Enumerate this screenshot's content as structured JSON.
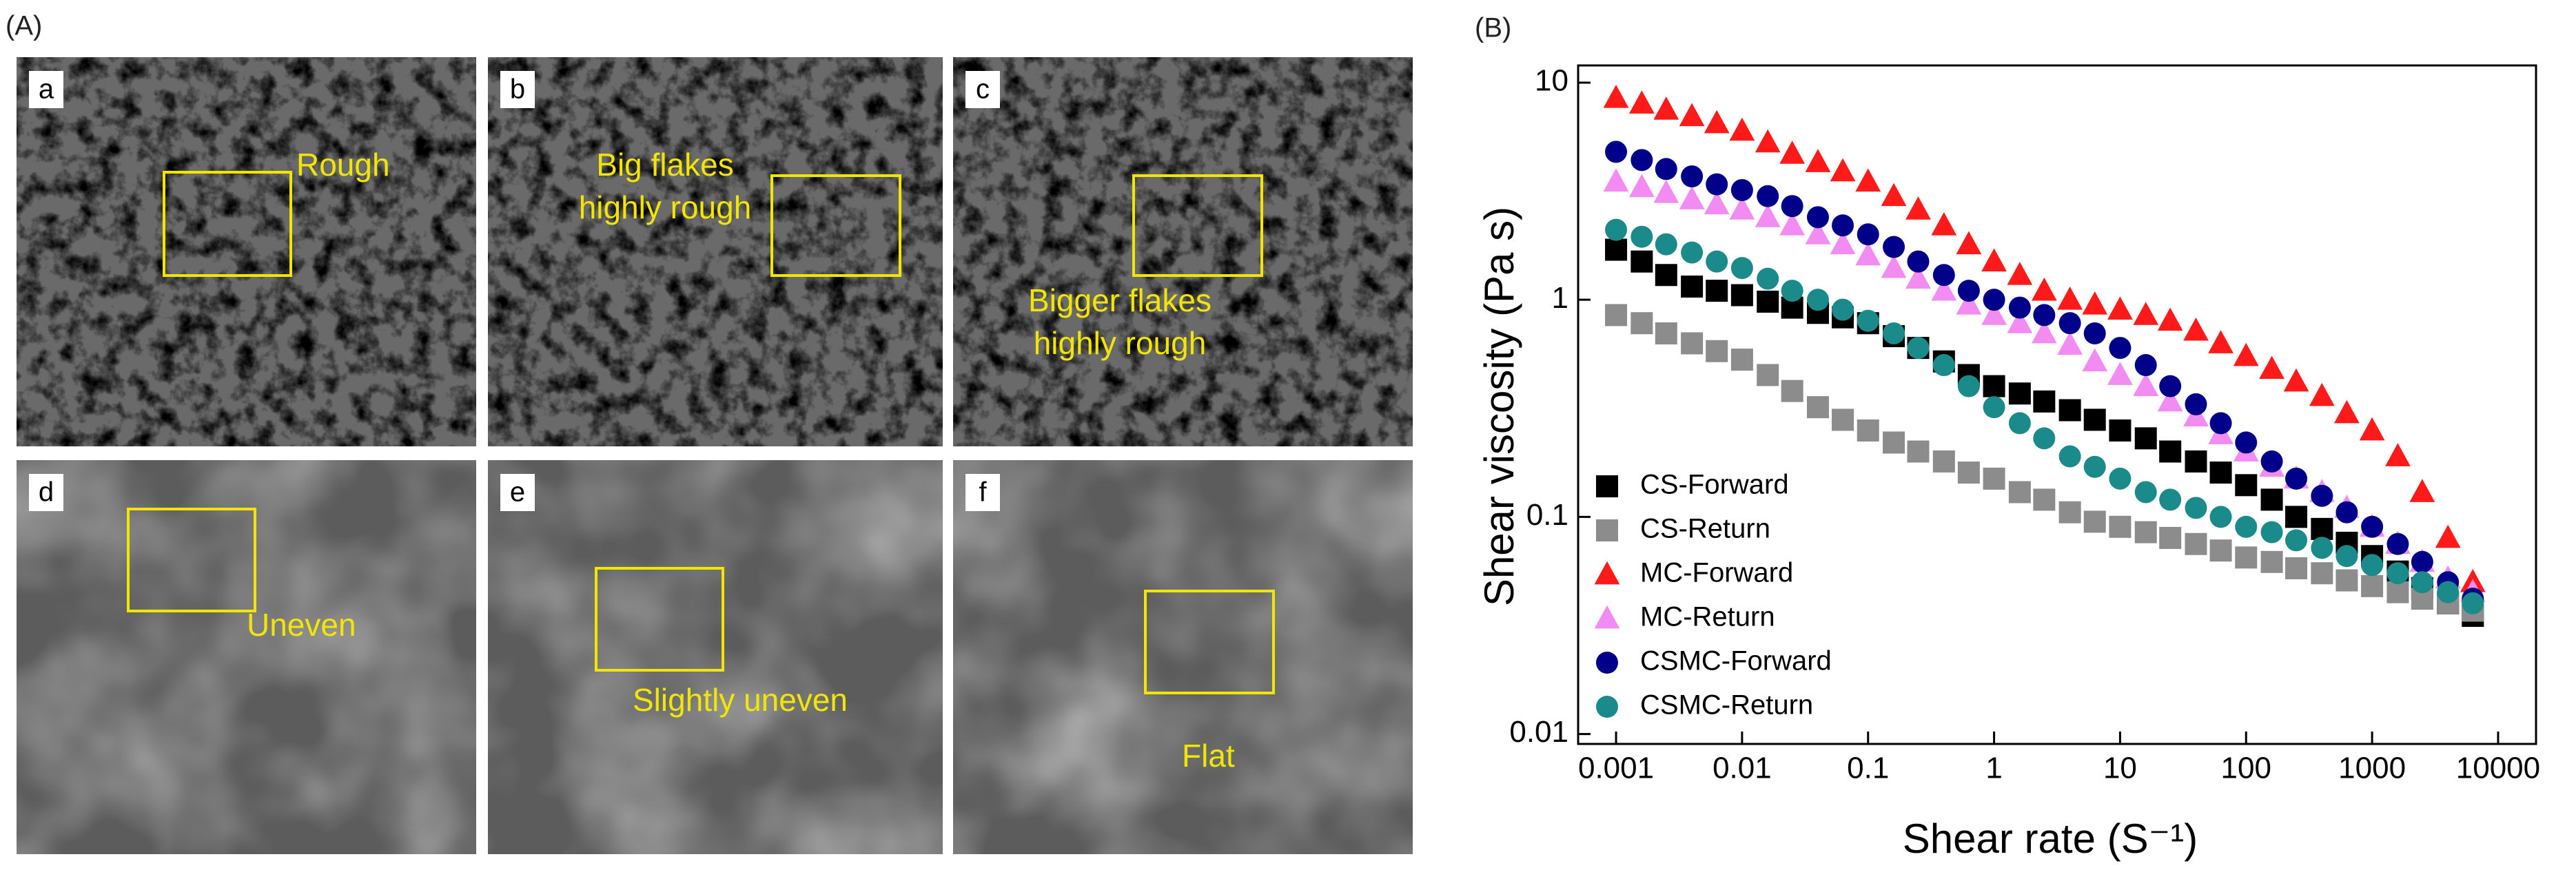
{
  "panel_a": {
    "label": "(A)",
    "images": [
      {
        "letter": "a",
        "annotation": [
          "Rough"
        ]
      },
      {
        "letter": "b",
        "annotation": [
          "Big flakes",
          "highly rough"
        ]
      },
      {
        "letter": "c",
        "annotation": [
          "Bigger flakes",
          "highly rough"
        ]
      },
      {
        "letter": "d",
        "annotation": [
          "Uneven"
        ]
      },
      {
        "letter": "e",
        "annotation": [
          "Slightly uneven"
        ]
      },
      {
        "letter": "f",
        "annotation": [
          "Flat"
        ]
      }
    ]
  },
  "chart_data": {
    "type": "scatter",
    "panel_label": "(B)",
    "x_label": "Shear rate (S⁻¹)",
    "y_label": "Shear viscosity (Pa s)",
    "xscale": "log",
    "yscale": "log",
    "grid": false,
    "legend": "lower left",
    "xlim": [
      0.0005,
      20000
    ],
    "ylim": [
      0.009,
      12
    ],
    "xticks": [
      0.001,
      0.01,
      0.1,
      1,
      10,
      100,
      1000,
      10000
    ],
    "yticks": [
      0.01,
      0.1,
      1,
      10
    ],
    "x": [
      0.001,
      0.0016,
      0.0025,
      0.004,
      0.0063,
      0.01,
      0.016,
      0.025,
      0.04,
      0.063,
      0.1,
      0.16,
      0.25,
      0.4,
      0.63,
      1,
      1.6,
      2.5,
      4,
      6.3,
      10,
      16,
      25,
      40,
      63,
      100,
      160,
      250,
      400,
      630,
      1000,
      1600,
      2500,
      4000,
      6300
    ],
    "series": [
      {
        "name": "CS-Forward",
        "color": "#000000",
        "marker": "square",
        "values": [
          1.7,
          1.5,
          1.3,
          1.15,
          1.1,
          1.05,
          0.98,
          0.92,
          0.87,
          0.83,
          0.78,
          0.68,
          0.6,
          0.52,
          0.45,
          0.4,
          0.37,
          0.34,
          0.31,
          0.28,
          0.25,
          0.23,
          0.2,
          0.18,
          0.16,
          0.14,
          0.12,
          0.1,
          0.088,
          0.076,
          0.066,
          0.056,
          0.047,
          0.04,
          0.035
        ]
      },
      {
        "name": "CS-Return",
        "color": "#8c8c8c",
        "marker": "square",
        "values": [
          0.85,
          0.78,
          0.7,
          0.63,
          0.58,
          0.53,
          0.45,
          0.38,
          0.32,
          0.28,
          0.25,
          0.22,
          0.2,
          0.18,
          0.16,
          0.15,
          0.13,
          0.12,
          0.105,
          0.095,
          0.09,
          0.085,
          0.08,
          0.075,
          0.07,
          0.065,
          0.062,
          0.058,
          0.055,
          0.051,
          0.048,
          0.045,
          0.042,
          0.04,
          0.037
        ]
      },
      {
        "name": "MC-Forward",
        "color": "#ff1a1a",
        "marker": "triangle",
        "values": [
          8.5,
          8,
          7.5,
          7,
          6.5,
          6,
          5.3,
          4.7,
          4.3,
          3.9,
          3.5,
          3,
          2.6,
          2.2,
          1.8,
          1.5,
          1.3,
          1.1,
          1.0,
          0.95,
          0.9,
          0.85,
          0.8,
          0.72,
          0.63,
          0.55,
          0.48,
          0.42,
          0.36,
          0.3,
          0.25,
          0.19,
          0.13,
          0.08,
          0.05
        ]
      },
      {
        "name": "MC-Return",
        "color": "#f28cf2",
        "marker": "triangle",
        "values": [
          3.5,
          3.3,
          3.1,
          2.9,
          2.75,
          2.6,
          2.4,
          2.2,
          2,
          1.8,
          1.6,
          1.4,
          1.25,
          1.1,
          0.95,
          0.85,
          0.78,
          0.7,
          0.62,
          0.52,
          0.45,
          0.4,
          0.34,
          0.29,
          0.24,
          0.2,
          0.17,
          0.15,
          0.13,
          0.11,
          0.09,
          0.075,
          0.062,
          0.052,
          0.045
        ]
      },
      {
        "name": "CSMC-Forward",
        "color": "#00008b",
        "marker": "circle",
        "values": [
          4.8,
          4.4,
          4,
          3.7,
          3.4,
          3.2,
          3,
          2.7,
          2.4,
          2.2,
          2,
          1.75,
          1.5,
          1.3,
          1.1,
          1.0,
          0.92,
          0.85,
          0.78,
          0.7,
          0.6,
          0.5,
          0.4,
          0.33,
          0.27,
          0.22,
          0.18,
          0.15,
          0.125,
          0.105,
          0.09,
          0.075,
          0.062,
          0.05,
          0.042
        ]
      },
      {
        "name": "CSMC-Return",
        "color": "#1a8a8a",
        "marker": "circle",
        "values": [
          2.1,
          1.95,
          1.8,
          1.65,
          1.5,
          1.4,
          1.25,
          1.1,
          1,
          0.9,
          0.8,
          0.7,
          0.6,
          0.5,
          0.4,
          0.32,
          0.27,
          0.23,
          0.19,
          0.17,
          0.15,
          0.13,
          0.12,
          0.11,
          0.1,
          0.09,
          0.085,
          0.078,
          0.072,
          0.066,
          0.06,
          0.055,
          0.05,
          0.045,
          0.04
        ]
      }
    ]
  }
}
